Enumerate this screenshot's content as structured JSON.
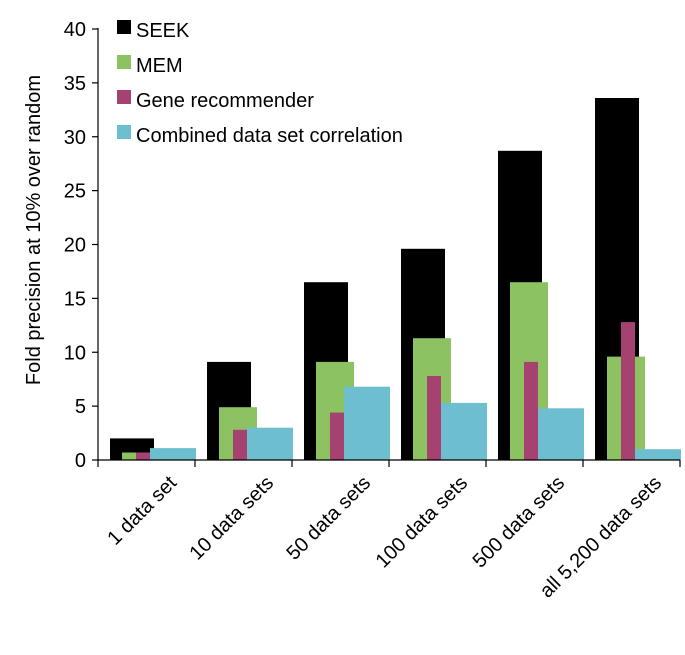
{
  "chart_data": {
    "type": "bar",
    "title": "",
    "xlabel": "",
    "ylabel": "Fold precision at 10% over random",
    "ylim": [
      0,
      40
    ],
    "yticks": [
      0,
      5,
      10,
      15,
      20,
      25,
      30,
      35,
      40
    ],
    "categories": [
      "1 data set",
      "10 data sets",
      "50 data sets",
      "100 data sets",
      "500 data sets",
      "all 5,200 data sets"
    ],
    "series": [
      {
        "name": "SEEK",
        "color": "#000000",
        "values": [
          2.0,
          9.1,
          16.5,
          19.6,
          28.7,
          33.6
        ]
      },
      {
        "name": "MEM",
        "color": "#8cc261",
        "values": [
          0.7,
          4.9,
          9.1,
          11.3,
          16.5,
          9.6
        ]
      },
      {
        "name": "Gene recommender",
        "color": "#a6426f",
        "values": [
          0.7,
          2.8,
          4.4,
          7.8,
          9.1,
          12.8
        ]
      },
      {
        "name": "Combined data set correlation",
        "color": "#6dbfd0",
        "values": [
          1.1,
          3.0,
          6.8,
          5.3,
          4.8,
          1.0
        ]
      }
    ],
    "legend": "top-left",
    "grid": false
  }
}
